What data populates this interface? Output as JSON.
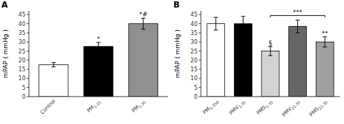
{
  "chart_data": [
    {
      "type": "bar",
      "title": "A",
      "categories": [
        "Control",
        "PM1-21",
        "PM1-35"
      ],
      "values": [
        17.5,
        27.5,
        40.0
      ],
      "errors": [
        1.2,
        2.2,
        3.0
      ],
      "colors": [
        "#ffffff",
        "#000000",
        "#909090"
      ],
      "ylabel": "mPAP ( mmHg )",
      "ylim": [
        0,
        47
      ],
      "yticks": [
        0,
        5,
        10,
        15,
        20,
        25,
        30,
        35,
        40,
        45
      ],
      "annotations": [
        {
          "text": "*",
          "x": 1,
          "y": 30.5
        },
        {
          "text": "*#",
          "x": 2,
          "y": 44.0
        }
      ]
    },
    {
      "type": "bar",
      "title": "B",
      "categories": [
        "PM1-35d",
        "PMV1-35",
        "PMS1-35",
        "PMV21-35",
        "PMS21-35"
      ],
      "values": [
        40.0,
        40.0,
        25.0,
        38.5,
        30.0
      ],
      "errors": [
        3.5,
        4.0,
        2.5,
        3.5,
        2.8
      ],
      "colors": [
        "#ffffff",
        "#000000",
        "#d3d3d3",
        "#666666",
        "#a0a0a0"
      ],
      "ylabel": "mPAP ( mmHg )",
      "ylim": [
        0,
        47
      ],
      "yticks": [
        0,
        5,
        10,
        15,
        20,
        25,
        30,
        35,
        40,
        45
      ],
      "annotations": [
        {
          "text": "§",
          "x": 2,
          "y": 28.2
        },
        {
          "text": "**",
          "x": 4,
          "y": 33.5
        }
      ],
      "bracket": {
        "x1": 2,
        "x2": 4,
        "y": 44.5,
        "drop": 1.0,
        "text": "***"
      }
    }
  ]
}
